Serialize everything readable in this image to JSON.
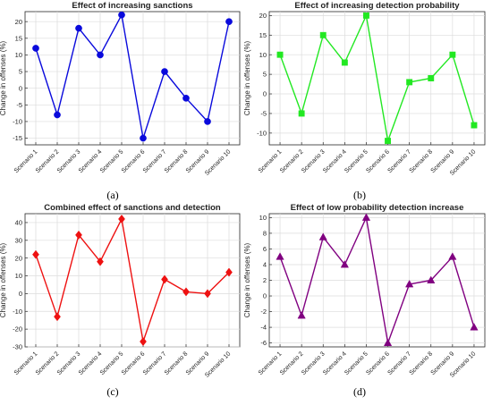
{
  "chart_data": [
    {
      "type": "line",
      "panel": "a",
      "caption": "(a)",
      "title": "Effect of increasing sanctions",
      "xlabel": "",
      "ylabel": "Change in offenses (%)",
      "categories": [
        "Scenario 1",
        "Scenario 2",
        "Scenario 3",
        "Scenario 4",
        "Scenario 5",
        "Scenario 6",
        "Scenario 7",
        "Scenario 8",
        "Scenario 9",
        "Scenario 10"
      ],
      "values": [
        12,
        -8,
        18,
        10,
        22,
        -15,
        5,
        -3,
        -10,
        20
      ],
      "ylim": [
        -17,
        23
      ],
      "yticks": [
        -15,
        -10,
        -5,
        0,
        5,
        10,
        15,
        20
      ],
      "color": "#0a0adc",
      "marker": "circle",
      "grid": true
    },
    {
      "type": "line",
      "panel": "b",
      "caption": "(b)",
      "title": "Effect of increasing detection probability",
      "xlabel": "",
      "ylabel": "Change in offenses (%)",
      "categories": [
        "Scenario 1",
        "Scenario 2",
        "Scenario 3",
        "Scenario 4",
        "Scenario 5",
        "Scenario 6",
        "Scenario 7",
        "Scenario 8",
        "Scenario 9",
        "Scenario 10"
      ],
      "values": [
        10,
        -5,
        15,
        8,
        20,
        -12,
        3,
        4,
        10,
        -8
      ],
      "ylim": [
        -13,
        21
      ],
      "yticks": [
        -10,
        -5,
        0,
        5,
        10,
        15,
        20
      ],
      "color": "#22e822",
      "marker": "square",
      "grid": true
    },
    {
      "type": "line",
      "panel": "c",
      "caption": "(c)",
      "title": "Combined effect of sanctions and detection",
      "xlabel": "",
      "ylabel": "Change in offenses (%)",
      "categories": [
        "Scenario 1",
        "Scenario 2",
        "Scenario 3",
        "Scenario 4",
        "Scenario 5",
        "Scenario 6",
        "Scenario 7",
        "Scenario 8",
        "Scenario 9",
        "Scenario 10"
      ],
      "values": [
        22,
        -13,
        33,
        18,
        42,
        -27,
        8,
        1,
        0,
        12
      ],
      "ylim": [
        -30,
        45
      ],
      "yticks": [
        -30,
        -20,
        -10,
        0,
        10,
        20,
        30,
        40
      ],
      "color": "#ee1111",
      "marker": "diamond",
      "grid": true
    },
    {
      "type": "line",
      "panel": "d",
      "caption": "(d)",
      "title": "Effect of low probability detection increase",
      "xlabel": "",
      "ylabel": "Change in offenses (%)",
      "categories": [
        "Scenario 1",
        "Scenario 2",
        "Scenario 3",
        "Scenario 4",
        "Scenario 5",
        "Scenario 6",
        "Scenario 7",
        "Scenario 8",
        "Scenario 9",
        "Scenario 10"
      ],
      "values": [
        5,
        -2.5,
        7.5,
        4,
        10,
        -6,
        1.5,
        2,
        5,
        -4
      ],
      "ylim": [
        -6.5,
        10.5
      ],
      "yticks": [
        -6,
        -4,
        -2,
        0,
        2,
        4,
        6,
        8,
        10
      ],
      "color": "#800080",
      "marker": "triangle",
      "grid": true
    }
  ]
}
